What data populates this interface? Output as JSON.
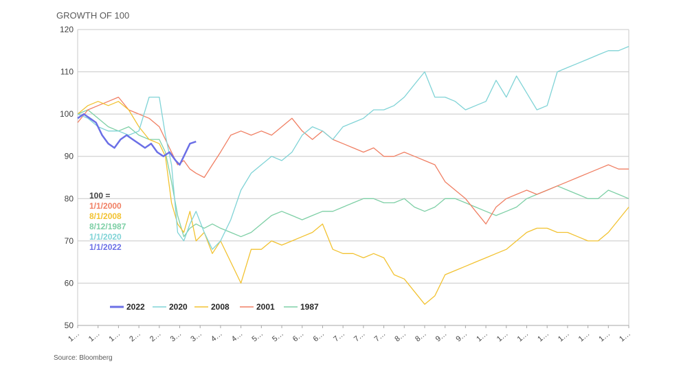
{
  "chart_data": {
    "type": "line",
    "title": "GROWTH OF 100",
    "xlabel": "",
    "ylabel": "",
    "ylim": [
      50,
      120
    ],
    "yticks": [
      50,
      60,
      70,
      80,
      90,
      100,
      110,
      120
    ],
    "xlim": [
      0,
      27
    ],
    "xtick_labels": [
      "1…",
      "1…",
      "1…",
      "2…",
      "2…",
      "3…",
      "3…",
      "4…",
      "4…",
      "5…",
      "5…",
      "6…",
      "6…",
      "7…",
      "7…",
      "7…",
      "8…",
      "8…",
      "9…",
      "9…",
      "1…",
      "1…",
      "1…",
      "1…",
      "1…",
      "1…",
      "1…",
      "1…"
    ],
    "grid": true,
    "legend_position": "bottom-left",
    "annotation": {
      "header": "100 =",
      "lines": [
        {
          "text": "1/1/2000",
          "color": "#f07f63"
        },
        {
          "text": "8/1/2008",
          "color": "#f2c230"
        },
        {
          "text": "8/12/1987",
          "color": "#7dcfa5"
        },
        {
          "text": "1/1/2020",
          "color": "#7fd3d6"
        },
        {
          "text": "1/1/2022",
          "color": "#6b6fe6"
        }
      ]
    },
    "series": [
      {
        "name": "2022",
        "color": "#6b6fe6",
        "x": [
          0,
          0.3,
          0.6,
          0.9,
          1.2,
          1.5,
          1.8,
          2.1,
          2.4,
          2.7,
          3.0,
          3.3,
          3.6,
          3.9,
          4.2,
          4.5,
          4.8,
          5.0,
          5.2,
          5.5,
          5.8
        ],
        "y": [
          99,
          100,
          99,
          98,
          95,
          93,
          92,
          94,
          95,
          94,
          93,
          92,
          93,
          91,
          90,
          91,
          89,
          88,
          90,
          93,
          93.5
        ]
      },
      {
        "name": "2020",
        "color": "#7fd3d6",
        "x": [
          0,
          0.5,
          1,
          1.5,
          2,
          2.5,
          3,
          3.5,
          4,
          4.3,
          4.6,
          4.9,
          5.2,
          5.5,
          5.8,
          6.2,
          6.6,
          7,
          7.5,
          8,
          8.5,
          9,
          9.5,
          10,
          10.5,
          11,
          11.5,
          12,
          12.5,
          13,
          13.5,
          14,
          14.5,
          15,
          15.5,
          16,
          16.5,
          17,
          17.5,
          18,
          18.5,
          19,
          19.5,
          20,
          20.5,
          21,
          21.5,
          22,
          22.5,
          23,
          23.5,
          24,
          24.5,
          25,
          25.5,
          26,
          26.5,
          27
        ],
        "y": [
          100,
          99,
          97,
          96,
          96,
          95,
          96,
          104,
          104,
          95,
          88,
          72,
          70,
          74,
          77,
          72,
          68,
          70,
          75,
          82,
          86,
          88,
          90,
          89,
          91,
          95,
          97,
          96,
          94,
          97,
          98,
          99,
          101,
          101,
          102,
          104,
          107,
          110,
          104,
          104,
          103,
          101,
          102,
          103,
          108,
          104,
          109,
          105,
          101,
          102,
          110,
          111,
          112,
          113,
          114,
          115,
          115,
          116
        ]
      },
      {
        "name": "2008",
        "color": "#f2c230",
        "x": [
          0,
          0.5,
          1,
          1.5,
          2,
          2.5,
          3,
          3.5,
          4,
          4.3,
          4.6,
          4.9,
          5.2,
          5.5,
          5.8,
          6.2,
          6.6,
          7,
          7.5,
          8,
          8.5,
          9,
          9.5,
          10,
          10.5,
          11,
          11.5,
          12,
          12.5,
          13,
          13.5,
          14,
          14.5,
          15,
          15.5,
          16,
          16.5,
          17,
          17.5,
          18,
          18.5,
          19,
          19.5,
          20,
          20.5,
          21,
          21.5,
          22,
          22.5,
          23,
          23.5,
          24,
          24.5,
          25,
          25.5,
          26,
          26.5,
          27
        ],
        "y": [
          100,
          102,
          103,
          102,
          103,
          101,
          97,
          94,
          93,
          90,
          79,
          74,
          72,
          77,
          70,
          72,
          67,
          70,
          65,
          60,
          68,
          68,
          70,
          69,
          70,
          71,
          72,
          74,
          68,
          67,
          67,
          66,
          67,
          66,
          62,
          61,
          58,
          55,
          57,
          62,
          63,
          64,
          65,
          66,
          67,
          68,
          70,
          72,
          73,
          73,
          72,
          72,
          71,
          70,
          70,
          72,
          75,
          78
        ]
      },
      {
        "name": "2001",
        "color": "#f07f63",
        "x": [
          0,
          0.5,
          1,
          1.5,
          2,
          2.5,
          3,
          3.5,
          4,
          4.3,
          4.6,
          4.9,
          5.2,
          5.5,
          5.8,
          6.2,
          6.6,
          7,
          7.5,
          8,
          8.5,
          9,
          9.5,
          10,
          10.5,
          11,
          11.5,
          12,
          12.5,
          13,
          13.5,
          14,
          14.5,
          15,
          15.5,
          16,
          16.5,
          17,
          17.5,
          18,
          18.5,
          19,
          19.5,
          20,
          20.5,
          21,
          21.5,
          22,
          22.5,
          23,
          23.5,
          24,
          24.5,
          25,
          25.5,
          26,
          26.5,
          27
        ],
        "y": [
          98,
          101,
          102,
          103,
          104,
          101,
          100,
          99,
          97,
          94,
          91,
          88,
          89,
          87,
          86,
          85,
          88,
          91,
          95,
          96,
          95,
          96,
          95,
          97,
          99,
          96,
          94,
          96,
          94,
          93,
          92,
          91,
          92,
          90,
          90,
          91,
          90,
          89,
          88,
          84,
          82,
          80,
          77,
          74,
          78,
          80,
          81,
          82,
          81,
          82,
          83,
          84,
          85,
          86,
          87,
          88,
          87,
          87
        ]
      },
      {
        "name": "1987",
        "color": "#7dcfa5",
        "x": [
          0,
          0.5,
          1,
          1.5,
          2,
          2.5,
          3,
          3.5,
          4,
          4.3,
          4.6,
          4.9,
          5.2,
          5.5,
          5.8,
          6.2,
          6.6,
          7,
          7.5,
          8,
          8.5,
          9,
          9.5,
          10,
          10.5,
          11,
          11.5,
          12,
          12.5,
          13,
          13.5,
          14,
          14.5,
          15,
          15.5,
          16,
          16.5,
          17,
          17.5,
          18,
          18.5,
          19,
          19.5,
          20,
          20.5,
          21,
          21.5,
          22,
          22.5,
          23,
          23.5,
          24,
          24.5,
          25,
          25.5,
          26,
          26.5,
          27
        ],
        "y": [
          100,
          101,
          99,
          97,
          96,
          97,
          95,
          94,
          94,
          91,
          84,
          76,
          71,
          73,
          74,
          73,
          74,
          73,
          72,
          71,
          72,
          74,
          76,
          77,
          76,
          75,
          76,
          77,
          77,
          78,
          79,
          80,
          80,
          79,
          79,
          80,
          78,
          77,
          78,
          80,
          80,
          79,
          78,
          77,
          76,
          77,
          78,
          80,
          81,
          82,
          83,
          82,
          81,
          80,
          80,
          82,
          81,
          80
        ]
      }
    ]
  },
  "source": "Source: Bloomberg"
}
